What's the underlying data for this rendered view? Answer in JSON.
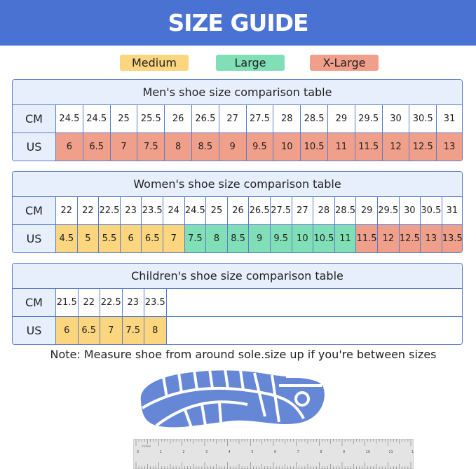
{
  "title": "SIZE GUIDE",
  "colors": {
    "banner": "#4a72d2",
    "medium": "#fcd67f",
    "large": "#80dfb6",
    "xlarge": "#f0a08a",
    "table_header": "#e6effb",
    "shoe": "#6587d6"
  },
  "legend": [
    {
      "label": "Medium",
      "key": "medium"
    },
    {
      "label": "Large",
      "key": "large"
    },
    {
      "label": "X-Large",
      "key": "xlarge"
    }
  ],
  "tables": [
    {
      "title": "Men's shoe size comparison table",
      "cm_label": "CM",
      "us_label": "US",
      "cm": [
        "24.5",
        "24.5",
        "25",
        "25.5",
        "26",
        "26.5",
        "27",
        "27.5",
        "28",
        "28.5",
        "29",
        "29.5",
        "30",
        "30.5",
        "31"
      ],
      "us": [
        "6",
        "6.5",
        "7",
        "7.5",
        "8",
        "8.5",
        "9",
        "9.5",
        "10",
        "10.5",
        "11",
        "11.5",
        "12",
        "12.5",
        "13"
      ],
      "size": [
        "xlarge",
        "xlarge",
        "xlarge",
        "xlarge",
        "xlarge",
        "xlarge",
        "xlarge",
        "xlarge",
        "xlarge",
        "xlarge",
        "xlarge",
        "xlarge",
        "xlarge",
        "xlarge",
        "xlarge"
      ]
    },
    {
      "title": "Women's shoe size comparison table",
      "cm_label": "CM",
      "us_label": "US",
      "cm": [
        "22",
        "22",
        "22.5",
        "23",
        "23.5",
        "24",
        "24.5",
        "25",
        "26",
        "26.5",
        "27.5",
        "27",
        "28",
        "28.5",
        "29",
        "29.5",
        "30",
        "30.5",
        "31"
      ],
      "us": [
        "4.5",
        "5",
        "5.5",
        "6",
        "6.5",
        "7",
        "7.5",
        "8",
        "8.5",
        "9",
        "9.5",
        "10",
        "10.5",
        "11",
        "11.5",
        "12",
        "12.5",
        "13",
        "13.5"
      ],
      "size": [
        "medium",
        "medium",
        "medium",
        "medium",
        "medium",
        "medium",
        "large",
        "large",
        "large",
        "large",
        "large",
        "large",
        "large",
        "large",
        "xlarge",
        "xlarge",
        "xlarge",
        "xlarge",
        "xlarge"
      ]
    },
    {
      "title": "Children's shoe size comparison table",
      "cm_label": "CM",
      "us_label": "US",
      "cm": [
        "21.5",
        "22",
        "22.5",
        "23",
        "23.5"
      ],
      "us": [
        "6",
        "6.5",
        "7",
        "7.5",
        "8"
      ],
      "size": [
        "medium",
        "medium",
        "medium",
        "medium",
        "medium"
      ]
    }
  ],
  "note": "Note: Measure shoe from around sole.size up if you're between sizes",
  "ruler": {
    "unit_label": "inches",
    "inches": [
      "0",
      "1",
      "2",
      "3",
      "4",
      "5",
      "6",
      "7",
      "8",
      "9",
      "10",
      "11",
      "12"
    ]
  }
}
